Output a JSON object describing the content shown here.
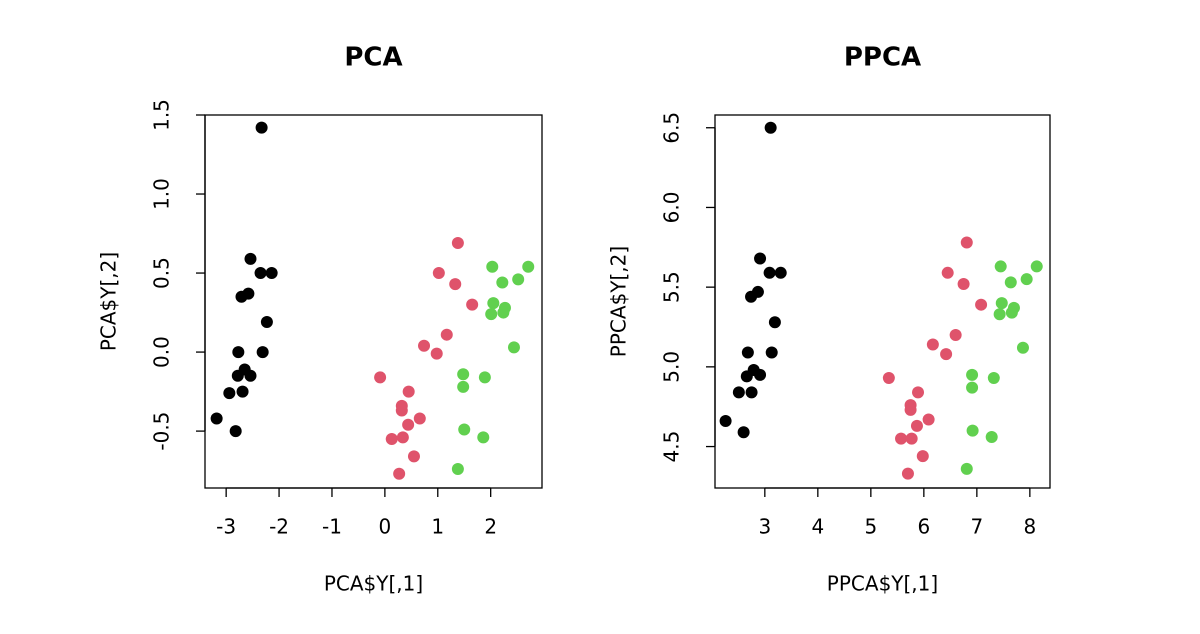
{
  "chart_data": [
    {
      "type": "scatter",
      "title": "PCA",
      "x_label": "PCA$Y[,1]",
      "y_label": "PCA$Y[,2]",
      "xlim": [
        -3.4,
        2.97
      ],
      "ylim": [
        -0.86,
        1.5
      ],
      "xticks": [
        -3,
        -2,
        -1,
        0,
        1,
        2
      ],
      "yticks": [
        -0.5,
        {
          "value": 0,
          "label": "0.0"
        },
        0.5,
        {
          "value": 1,
          "label": "1.0"
        },
        1.5
      ],
      "series": [
        {
          "color": "#000000",
          "x": [
            -2.33,
            -2.54,
            -2.35,
            -2.14,
            -2.58,
            -2.71,
            -2.23,
            -2.77,
            -2.31,
            -2.65,
            -2.78,
            -2.54,
            -2.94,
            -2.69,
            -3.18,
            -2.82
          ],
          "values": [
            1.42,
            0.59,
            0.5,
            0.5,
            0.37,
            0.35,
            0.19,
            0.0,
            0.0,
            -0.11,
            -0.15,
            -0.15,
            -0.26,
            -0.25,
            -0.42,
            -0.5
          ]
        },
        {
          "color": "#DF536B",
          "x": [
            1.38,
            1.02,
            1.33,
            1.65,
            1.17,
            0.74,
            0.98,
            -0.09,
            0.45,
            0.32,
            0.32,
            0.66,
            0.44,
            0.13,
            0.34,
            0.55,
            0.27
          ],
          "values": [
            0.69,
            0.5,
            0.43,
            0.3,
            0.11,
            0.04,
            -0.01,
            -0.16,
            -0.25,
            -0.34,
            -0.37,
            -0.42,
            -0.46,
            -0.55,
            -0.54,
            -0.66,
            -0.77
          ]
        },
        {
          "color": "#61D04F",
          "x": [
            2.03,
            2.71,
            2.52,
            2.22,
            2.05,
            2.27,
            2.24,
            2.01,
            2.44,
            1.48,
            1.89,
            1.48,
            1.5,
            1.86,
            1.38
          ],
          "values": [
            0.54,
            0.54,
            0.46,
            0.44,
            0.31,
            0.28,
            0.25,
            0.24,
            0.03,
            -0.14,
            -0.16,
            -0.22,
            -0.49,
            -0.54,
            -0.74
          ]
        }
      ]
    },
    {
      "type": "scatter",
      "title": "PPCA",
      "x_label": "PPCA$Y[,1]",
      "y_label": "PPCA$Y[,2]",
      "xlim": [
        2.06,
        8.38
      ],
      "ylim": [
        4.24,
        6.58
      ],
      "xticks": [
        3,
        4,
        5,
        6,
        7,
        8
      ],
      "yticks": [
        4.5,
        {
          "value": 5,
          "label": "5.0"
        },
        5.5,
        {
          "value": 6,
          "label": "6.0"
        },
        6.5
      ],
      "series": [
        {
          "color": "#000000",
          "x": [
            3.11,
            2.91,
            3.09,
            3.3,
            2.87,
            2.74,
            3.19,
            2.68,
            3.13,
            2.79,
            2.66,
            2.91,
            2.51,
            2.75,
            2.26,
            2.6
          ],
          "values": [
            6.5,
            5.68,
            5.59,
            5.59,
            5.47,
            5.44,
            5.28,
            5.09,
            5.09,
            4.98,
            4.94,
            4.95,
            4.84,
            4.84,
            4.66,
            4.59
          ]
        },
        {
          "color": "#DF536B",
          "x": [
            6.81,
            6.45,
            6.75,
            7.08,
            6.6,
            6.17,
            6.42,
            5.34,
            5.89,
            5.75,
            5.75,
            6.09,
            5.87,
            5.57,
            5.77,
            5.98,
            5.7
          ],
          "values": [
            5.78,
            5.59,
            5.52,
            5.39,
            5.2,
            5.14,
            5.08,
            4.93,
            4.84,
            4.76,
            4.73,
            4.67,
            4.63,
            4.55,
            4.55,
            4.44,
            4.33
          ]
        },
        {
          "color": "#61D04F",
          "x": [
            7.45,
            8.13,
            7.94,
            7.64,
            7.47,
            7.7,
            7.66,
            7.43,
            7.87,
            6.91,
            7.32,
            6.91,
            6.92,
            7.28,
            6.81
          ],
          "values": [
            5.63,
            5.63,
            5.55,
            5.53,
            5.4,
            5.37,
            5.34,
            5.33,
            5.12,
            4.95,
            4.93,
            4.87,
            4.6,
            4.56,
            4.36
          ]
        }
      ]
    }
  ]
}
